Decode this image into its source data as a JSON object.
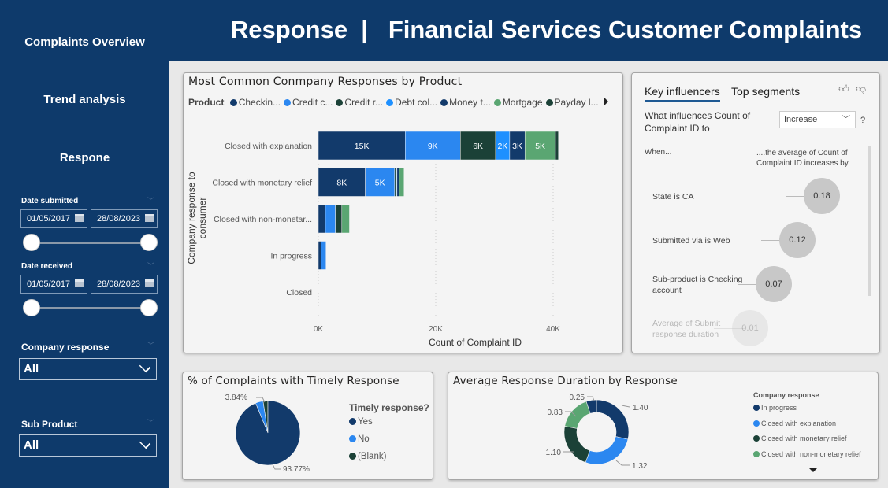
{
  "header": {
    "title": "Response  |   Financial Services Customer Complaints"
  },
  "sidebar": {
    "nav": [
      "Complaints Overview",
      "Trend analysis",
      "Respone"
    ],
    "date_submitted": {
      "label": "Date submitted",
      "start": "01/05/2017",
      "end": "28/08/2023"
    },
    "date_received": {
      "label": "Date received",
      "start": "01/05/2017",
      "end": "28/08/2023"
    },
    "company_response": {
      "label": "Company response",
      "value": "All"
    },
    "sub_product": {
      "label": "Sub Product",
      "value": "All"
    }
  },
  "colors": {
    "navy": "#123a6b",
    "blue": "#2b87f0",
    "darkgreen": "#1b4137",
    "lightblue": "#1e90ff",
    "green": "#5aa672",
    "sidebar": "#0e3a6b"
  },
  "chart_data": [
    {
      "type": "bar",
      "orientation": "horizontal",
      "stacked": true,
      "title": "Most Common Conmpany Responses by Product",
      "legend_title": "Product",
      "legend_position": "top",
      "xlabel": "Count of Complaint ID",
      "ylabel": "Company response to consumer",
      "xlim": [
        0,
        42000
      ],
      "xticks": [
        "0K",
        "20K",
        "40K"
      ],
      "categories": [
        "Closed with explanation",
        "Closed with monetary relief",
        "Closed with non-monetar...",
        "In progress",
        "Closed"
      ],
      "series": [
        {
          "name": "Checkin...",
          "color": "#123a6b",
          "values": [
            14800,
            8000,
            1200,
            500,
            0
          ]
        },
        {
          "name": "Credit c...",
          "color": "#2b87f0",
          "values": [
            9400,
            5000,
            1700,
            800,
            0
          ]
        },
        {
          "name": "Credit r...",
          "color": "#1b4137",
          "values": [
            6000,
            300,
            1100,
            0,
            0
          ]
        },
        {
          "name": "Debt col...",
          "color": "#1e90ff",
          "values": [
            2400,
            100,
            0,
            0,
            0
          ]
        },
        {
          "name": "Money t...",
          "color": "#123a6b",
          "values": [
            2600,
            400,
            0,
            0,
            0
          ]
        },
        {
          "name": "Mortgage",
          "color": "#5aa672",
          "values": [
            5200,
            800,
            1300,
            0,
            0
          ]
        },
        {
          "name": "Payday l...",
          "color": "#1b4137",
          "values": [
            500,
            0,
            0,
            0,
            0
          ]
        }
      ],
      "data_labels": [
        [
          "15K",
          "9K",
          "6K",
          "2K",
          "3K",
          "5K",
          ""
        ],
        [
          "8K",
          "5K",
          "",
          "",
          "",
          "",
          ""
        ]
      ]
    },
    {
      "type": "pie",
      "title": "% of Complaints with Timely Response",
      "legend_title": "Timely response?",
      "slices": [
        {
          "name": "Yes",
          "value": 93.77,
          "label": "93.77%",
          "color": "#123a6b"
        },
        {
          "name": "No",
          "value": 3.84,
          "label": "3.84%",
          "color": "#2b87f0"
        },
        {
          "name": "(Blank)",
          "value": 2.39,
          "label": "",
          "color": "#1b4137"
        }
      ]
    },
    {
      "type": "pie",
      "donut": true,
      "title": "Average Response Duration by Response",
      "legend_title": "Company response",
      "slices": [
        {
          "name": "In progress",
          "value": 1.4,
          "label": "1.40",
          "color": "#123a6b"
        },
        {
          "name": "Closed with explanation",
          "value": 1.32,
          "label": "1.32",
          "color": "#2b87f0"
        },
        {
          "name": "Closed with monetary relief",
          "value": 1.1,
          "label": "1.10",
          "color": "#1b4137"
        },
        {
          "name": "Closed with non-monetary relief",
          "value": 0.83,
          "label": "0.83",
          "color": "#5aa672"
        },
        {
          "name": "",
          "value": 0.25,
          "label": "0.25",
          "color": "#123a6b"
        }
      ]
    }
  ],
  "key_influencers": {
    "tabs": [
      "Key influencers",
      "Top segments"
    ],
    "question": "What influences Count of Complaint ID to",
    "dropdown": "Increase",
    "help": "?",
    "col_left": "When...",
    "col_right": "....the average of Count of Complaint ID increases by",
    "items": [
      {
        "label": "State is CA",
        "value": "0.18"
      },
      {
        "label": "Submitted via is Web",
        "value": "0.12"
      },
      {
        "label": "Sub-product is Checking account",
        "value": "0.07"
      },
      {
        "label": "Average of Submit response duration",
        "value": "0.01"
      }
    ]
  }
}
